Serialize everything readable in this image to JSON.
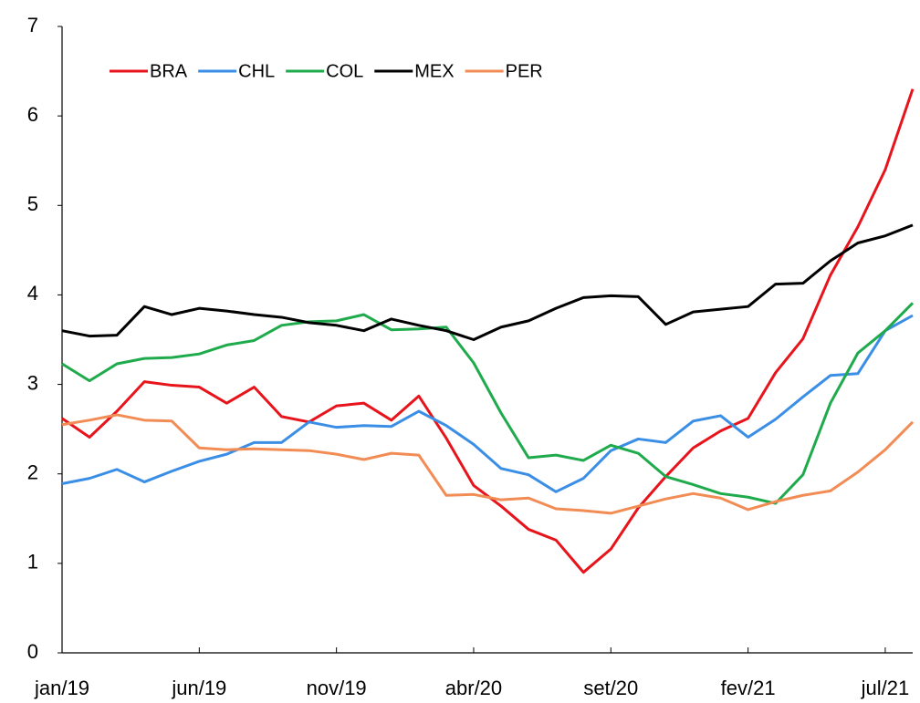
{
  "chart_data": {
    "type": "line",
    "categories": [
      "jan/19",
      null,
      null,
      null,
      null,
      "jun/19",
      null,
      null,
      null,
      null,
      "nov/19",
      null,
      null,
      null,
      null,
      "abr/20",
      null,
      null,
      null,
      null,
      "set/20",
      null,
      null,
      null,
      null,
      "fev/21",
      null,
      null,
      null,
      null,
      "jul/21",
      null
    ],
    "series": [
      {
        "name": "BRA",
        "color": "#e8141b",
        "values": [
          2.62,
          2.41,
          2.7,
          3.03,
          2.99,
          2.97,
          2.79,
          2.97,
          2.64,
          2.58,
          2.76,
          2.79,
          2.6,
          2.87,
          2.4,
          1.87,
          1.64,
          1.38,
          1.26,
          0.9,
          1.16,
          1.62,
          1.97,
          2.29,
          2.48,
          2.62,
          3.13,
          3.51,
          4.22,
          4.76,
          5.4,
          6.3
        ]
      },
      {
        "name": "CHL",
        "color": "#3a8ee6",
        "values": [
          1.89,
          1.95,
          2.05,
          1.91,
          2.03,
          2.14,
          2.22,
          2.35,
          2.35,
          2.58,
          2.52,
          2.54,
          2.53,
          2.7,
          2.54,
          2.33,
          2.06,
          1.99,
          1.8,
          1.95,
          2.26,
          2.39,
          2.35,
          2.59,
          2.65,
          2.41,
          2.61,
          2.86,
          3.1,
          3.12,
          3.6,
          3.77
        ]
      },
      {
        "name": "COL",
        "color": "#1faa4c",
        "values": [
          3.23,
          3.04,
          3.23,
          3.29,
          3.3,
          3.34,
          3.44,
          3.49,
          3.66,
          3.7,
          3.71,
          3.78,
          3.61,
          3.62,
          3.64,
          3.24,
          2.68,
          2.18,
          2.21,
          2.15,
          2.32,
          2.23,
          1.97,
          1.88,
          1.78,
          1.74,
          1.67,
          1.99,
          2.79,
          3.35,
          3.6,
          3.91
        ]
      },
      {
        "name": "MEX",
        "color": "#000000",
        "values": [
          3.6,
          3.54,
          3.55,
          3.87,
          3.78,
          3.85,
          3.82,
          3.78,
          3.75,
          3.69,
          3.66,
          3.6,
          3.73,
          3.66,
          3.6,
          3.5,
          3.64,
          3.71,
          3.85,
          3.97,
          3.99,
          3.98,
          3.67,
          3.81,
          3.84,
          3.87,
          4.12,
          4.13,
          4.38,
          4.58,
          4.66,
          4.78
        ]
      },
      {
        "name": "PER",
        "color": "#f28c55",
        "values": [
          2.55,
          2.6,
          2.66,
          2.6,
          2.59,
          2.29,
          2.27,
          2.28,
          2.27,
          2.26,
          2.22,
          2.16,
          2.23,
          2.21,
          1.76,
          1.77,
          1.71,
          1.73,
          1.61,
          1.59,
          1.56,
          1.64,
          1.72,
          1.78,
          1.73,
          1.6,
          1.69,
          1.76,
          1.81,
          2.02,
          2.27,
          2.58
        ]
      }
    ],
    "ylim": [
      0,
      7
    ],
    "yticks": [
      0,
      1,
      2,
      3,
      4,
      5,
      6,
      7
    ],
    "grid": false,
    "legend": "top-left"
  }
}
